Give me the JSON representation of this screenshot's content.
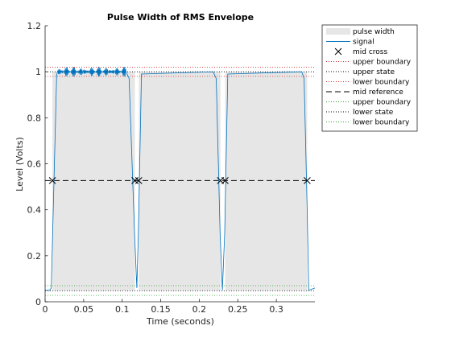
{
  "chart_data": {
    "type": "line",
    "title": "Pulse Width of RMS Envelope",
    "xlabel": "Time (seconds)",
    "ylabel": "Level (Volts)",
    "xlim": [
      0,
      0.35
    ],
    "ylim": [
      0,
      1.2
    ],
    "xticks": [
      0,
      0.05,
      0.1,
      0.15,
      0.2,
      0.25,
      0.3
    ],
    "xtick_labels": [
      "0",
      "0.05",
      "0.1",
      "0.15",
      "0.2",
      "0.25",
      "0.3"
    ],
    "yticks": [
      0,
      0.2,
      0.4,
      0.6,
      0.8,
      1.0,
      1.2
    ],
    "ytick_labels": [
      "0",
      "0.2",
      "0.4",
      "0.6",
      "0.8",
      "1",
      "1.2"
    ],
    "legend_position": "outside-top-right",
    "levels": {
      "upper_state": 1.0,
      "upper_boundary_high": 1.02,
      "upper_boundary_low": 0.98,
      "mid_reference": 0.527,
      "lower_state": 0.048,
      "lower_boundary_high": 0.07,
      "lower_boundary_low": 0.028
    },
    "pulse_width": {
      "color": "#e6e6e6",
      "intervals": [
        [
          0.0095,
          0.1165
        ],
        [
          0.1215,
          0.2275
        ],
        [
          0.2335,
          0.34
        ]
      ]
    },
    "signal": {
      "color": "#0072bd",
      "points": [
        [
          0.0,
          0.05
        ],
        [
          0.006,
          0.05
        ],
        [
          0.008,
          0.06
        ],
        [
          0.015,
          0.985
        ],
        [
          0.016,
          1.0
        ],
        [
          0.105,
          1.0
        ],
        [
          0.109,
          0.97
        ],
        [
          0.116,
          0.3
        ],
        [
          0.119,
          0.06
        ],
        [
          0.121,
          0.3
        ],
        [
          0.125,
          0.99
        ],
        [
          0.218,
          1.0
        ],
        [
          0.222,
          0.97
        ],
        [
          0.227,
          0.3
        ],
        [
          0.23,
          0.05
        ],
        [
          0.233,
          0.3
        ],
        [
          0.237,
          0.99
        ],
        [
          0.333,
          1.0
        ],
        [
          0.336,
          0.97
        ],
        [
          0.34,
          0.4
        ],
        [
          0.342,
          0.05
        ],
        [
          0.35,
          0.06
        ]
      ],
      "flat_segments": [
        [
          0.016,
          0.105
        ],
        [
          0.128,
          0.218
        ],
        [
          0.24,
          0.333
        ]
      ],
      "ripple_amplitudes": [
        0.022,
        0.008,
        0.018
      ]
    },
    "mid_cross": {
      "color": "#000000",
      "x": [
        0.0095,
        0.1165,
        0.1215,
        0.2275,
        0.2335,
        0.34
      ],
      "y": 0.527
    },
    "legend": [
      {
        "label": "pulse width",
        "style": "patch",
        "color": "#e6e6e6"
      },
      {
        "label": "signal",
        "style": "solid",
        "color": "#0072bd"
      },
      {
        "label": "mid cross",
        "style": "marker-x",
        "color": "#000000"
      },
      {
        "label": "upper boundary",
        "style": "dotted",
        "color": "#d62728"
      },
      {
        "label": "upper state",
        "style": "dotted",
        "color": "#000000"
      },
      {
        "label": "lower boundary",
        "style": "dotted",
        "color": "#d62728"
      },
      {
        "label": "mid reference",
        "style": "dashed",
        "color": "#000000"
      },
      {
        "label": "upper boundary",
        "style": "dotted",
        "color": "#2ca02c"
      },
      {
        "label": "lower state",
        "style": "dotted",
        "color": "#000000"
      },
      {
        "label": "lower boundary",
        "style": "dotted",
        "color": "#2ca02c"
      }
    ]
  }
}
